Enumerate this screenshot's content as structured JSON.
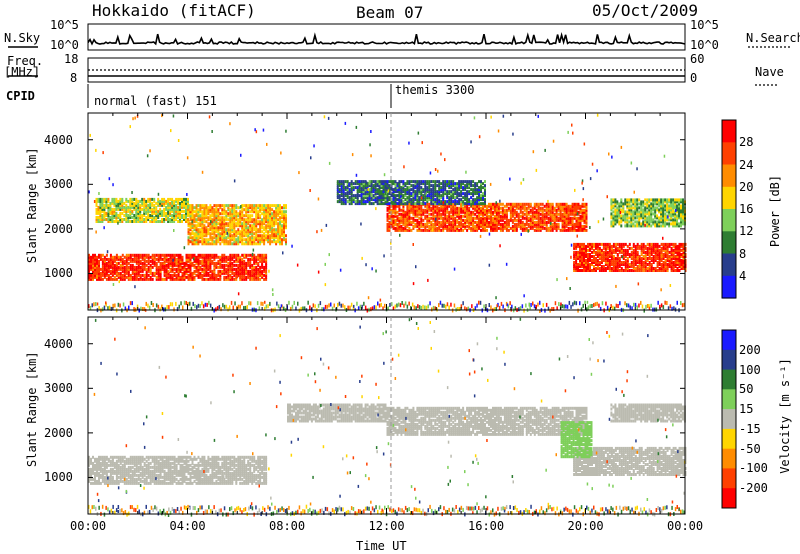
{
  "header": {
    "station": "Hokkaido (fitACF)",
    "beam": "Beam 07",
    "date": "05/Oct/2009"
  },
  "top_panels": {
    "nsky_label": "N.Sky",
    "nsky_ticks": [
      "10^5",
      "10^0"
    ],
    "nsearch_label": "N.Search",
    "nsearch_ticks": [
      "10^5",
      "10^0"
    ],
    "freq_label": "Freq.",
    "freq_unit": "[MHz]",
    "freq_ticks": [
      "18",
      "8"
    ],
    "nave_label": "Nave",
    "nave_ticks": [
      "60",
      "0"
    ],
    "cpid_label": "CPID",
    "cpid_modes": [
      {
        "label": "normal (fast) 151",
        "start_hour": 0
      },
      {
        "label": "themis 3300",
        "start_hour": 12
      }
    ]
  },
  "chart_data": [
    {
      "type": "heatmap",
      "panel": "power",
      "ylabel": "Slant Range [km]",
      "xlabel": "",
      "x_range_hours": [
        0,
        24
      ],
      "ylim": [
        180,
        4600
      ],
      "yticks": [
        1000,
        2000,
        3000,
        4000
      ],
      "colorbar_label": "Power [dB]",
      "colorbar_ticks": [
        "4",
        "8",
        "12",
        "16",
        "20",
        "24",
        "28"
      ],
      "colorbar_colors": [
        "#1a1aff",
        "#283e8c",
        "#2e7d32",
        "#7ecf5a",
        "#ffd500",
        "#ff8c00",
        "#ff4000",
        "#ff0000"
      ],
      "echo_regions": [
        {
          "t0": 0.0,
          "t1": 7.2,
          "r0": 900,
          "r1": 1450,
          "level": 28
        },
        {
          "t0": 4.0,
          "t1": 8.0,
          "r0": 1700,
          "r1": 2600,
          "level": 20
        },
        {
          "t0": 0.3,
          "t1": 4.0,
          "r0": 2200,
          "r1": 2700,
          "level": 16
        },
        {
          "t0": 12.0,
          "t1": 20.0,
          "r0": 2000,
          "r1": 2600,
          "level": 26
        },
        {
          "t0": 19.5,
          "t1": 24.0,
          "r0": 1100,
          "r1": 1700,
          "level": 28
        },
        {
          "t0": 21.0,
          "t1": 24.0,
          "r0": 2100,
          "r1": 2700,
          "level": 14
        },
        {
          "t0": 10.0,
          "t1": 16.0,
          "r0": 2600,
          "r1": 3100,
          "level": 8
        }
      ]
    },
    {
      "type": "heatmap",
      "panel": "velocity",
      "ylabel": "Slant Range [km]",
      "xlabel": "Time UT",
      "x_range_hours": [
        0,
        24
      ],
      "x_tick_labels": [
        "00:00",
        "04:00",
        "08:00",
        "12:00",
        "16:00",
        "20:00",
        "00:00"
      ],
      "ylim": [
        180,
        4600
      ],
      "yticks": [
        1000,
        2000,
        3000,
        4000
      ],
      "colorbar_label": "Velocity [m s⁻¹]",
      "colorbar_ticks": [
        "200",
        "100",
        "50",
        "15",
        "-15",
        "-50",
        "-100",
        "-200"
      ],
      "colorbar_colors": [
        "#1a1aff",
        "#283e8c",
        "#2e7d32",
        "#7ecf5a",
        "#bbbbb0",
        "#ffd500",
        "#ff8c00",
        "#ff4000",
        "#ff0000"
      ],
      "echo_regions": [
        {
          "t0": 0.0,
          "t1": 7.2,
          "r0": 900,
          "r1": 1500,
          "level": 0
        },
        {
          "t0": 12.0,
          "t1": 20.0,
          "r0": 2000,
          "r1": 2600,
          "level": 0
        },
        {
          "t0": 19.5,
          "t1": 24.0,
          "r0": 1100,
          "r1": 1700,
          "level": 0
        },
        {
          "t0": 19.0,
          "t1": 20.2,
          "r0": 1500,
          "r1": 2300,
          "level": 30
        },
        {
          "t0": 8.0,
          "t1": 12.0,
          "r0": 2300,
          "r1": 2700,
          "level": 0
        },
        {
          "t0": 21.0,
          "t1": 24.0,
          "r0": 2300,
          "r1": 2700,
          "level": 0
        }
      ]
    }
  ]
}
